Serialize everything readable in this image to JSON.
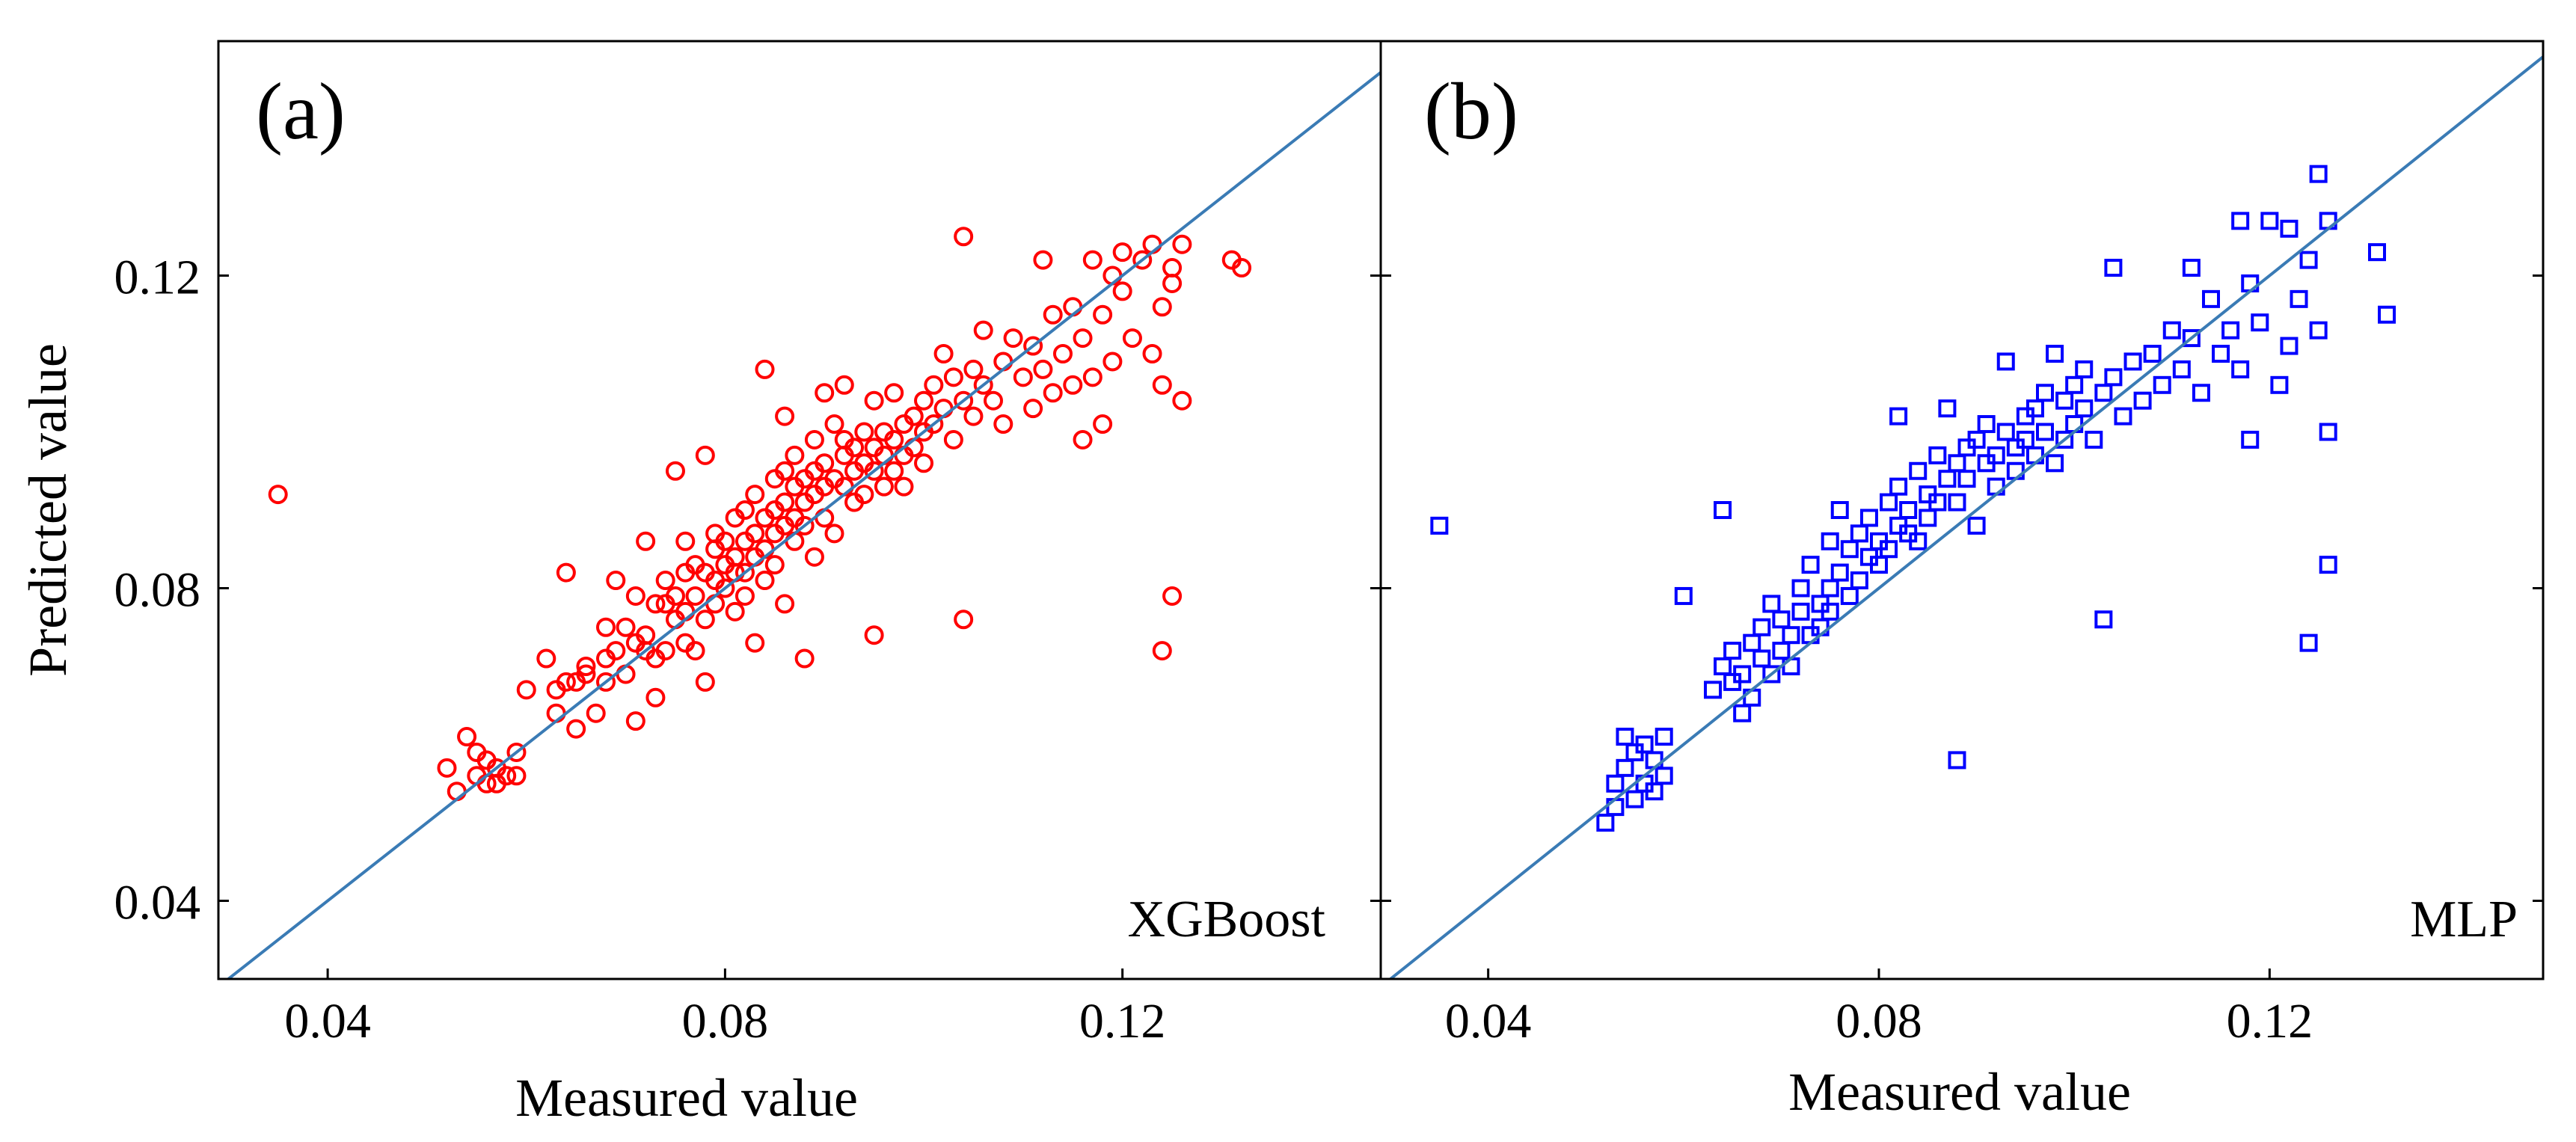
{
  "figure": {
    "ylabel": "Predicted value",
    "colors": {
      "xgboost_marker": "#ff0000",
      "mlp_marker": "#0000ff",
      "identity_line": "#3a7bb5",
      "axes": "#000000"
    }
  },
  "chart_data": [
    {
      "type": "scatter",
      "panel_label": "(a)",
      "model": "XGBoost",
      "marker": "circle",
      "xlabel": "Measured value",
      "ylabel": "Predicted value",
      "xlim": [
        0.029,
        0.146
      ],
      "ylim": [
        0.03,
        0.15
      ],
      "xticks": [
        0.04,
        0.08,
        0.12
      ],
      "xtick_labels": [
        "0.04",
        "0.08",
        "0.12"
      ],
      "yticks": [
        0.04,
        0.08,
        0.12
      ],
      "ytick_labels": [
        "0.04",
        "0.08",
        "0.12"
      ],
      "identity_line": true,
      "points": [
        [
          0.035,
          0.092
        ],
        [
          0.052,
          0.057
        ],
        [
          0.053,
          0.054
        ],
        [
          0.054,
          0.061
        ],
        [
          0.055,
          0.056
        ],
        [
          0.055,
          0.059
        ],
        [
          0.056,
          0.058
        ],
        [
          0.056,
          0.055
        ],
        [
          0.057,
          0.057
        ],
        [
          0.057,
          0.055
        ],
        [
          0.058,
          0.056
        ],
        [
          0.059,
          0.059
        ],
        [
          0.059,
          0.056
        ],
        [
          0.06,
          0.067
        ],
        [
          0.062,
          0.071
        ],
        [
          0.063,
          0.064
        ],
        [
          0.063,
          0.067
        ],
        [
          0.064,
          0.082
        ],
        [
          0.064,
          0.068
        ],
        [
          0.065,
          0.068
        ],
        [
          0.065,
          0.062
        ],
        [
          0.066,
          0.069
        ],
        [
          0.066,
          0.07
        ],
        [
          0.067,
          0.064
        ],
        [
          0.068,
          0.071
        ],
        [
          0.068,
          0.075
        ],
        [
          0.068,
          0.068
        ],
        [
          0.069,
          0.081
        ],
        [
          0.069,
          0.072
        ],
        [
          0.07,
          0.075
        ],
        [
          0.07,
          0.069
        ],
        [
          0.071,
          0.073
        ],
        [
          0.071,
          0.063
        ],
        [
          0.071,
          0.079
        ],
        [
          0.072,
          0.072
        ],
        [
          0.072,
          0.086
        ],
        [
          0.072,
          0.074
        ],
        [
          0.073,
          0.066
        ],
        [
          0.073,
          0.078
        ],
        [
          0.073,
          0.071
        ],
        [
          0.074,
          0.078
        ],
        [
          0.074,
          0.072
        ],
        [
          0.074,
          0.081
        ],
        [
          0.075,
          0.076
        ],
        [
          0.075,
          0.079
        ],
        [
          0.075,
          0.095
        ],
        [
          0.076,
          0.086
        ],
        [
          0.076,
          0.073
        ],
        [
          0.076,
          0.082
        ],
        [
          0.076,
          0.077
        ],
        [
          0.077,
          0.083
        ],
        [
          0.077,
          0.079
        ],
        [
          0.077,
          0.072
        ],
        [
          0.078,
          0.097
        ],
        [
          0.078,
          0.082
        ],
        [
          0.078,
          0.076
        ],
        [
          0.078,
          0.068
        ],
        [
          0.079,
          0.085
        ],
        [
          0.079,
          0.081
        ],
        [
          0.079,
          0.078
        ],
        [
          0.079,
          0.087
        ],
        [
          0.08,
          0.083
        ],
        [
          0.08,
          0.08
        ],
        [
          0.08,
          0.086
        ],
        [
          0.081,
          0.082
        ],
        [
          0.081,
          0.077
        ],
        [
          0.081,
          0.089
        ],
        [
          0.081,
          0.084
        ],
        [
          0.082,
          0.086
        ],
        [
          0.082,
          0.082
        ],
        [
          0.082,
          0.09
        ],
        [
          0.082,
          0.079
        ],
        [
          0.083,
          0.087
        ],
        [
          0.083,
          0.084
        ],
        [
          0.083,
          0.092
        ],
        [
          0.083,
          0.073
        ],
        [
          0.084,
          0.089
        ],
        [
          0.084,
          0.108
        ],
        [
          0.084,
          0.085
        ],
        [
          0.084,
          0.081
        ],
        [
          0.085,
          0.09
        ],
        [
          0.085,
          0.087
        ],
        [
          0.085,
          0.094
        ],
        [
          0.085,
          0.083
        ],
        [
          0.086,
          0.091
        ],
        [
          0.086,
          0.088
        ],
        [
          0.086,
          0.095
        ],
        [
          0.086,
          0.102
        ],
        [
          0.086,
          0.078
        ],
        [
          0.087,
          0.093
        ],
        [
          0.087,
          0.089
        ],
        [
          0.087,
          0.086
        ],
        [
          0.087,
          0.097
        ],
        [
          0.088,
          0.091
        ],
        [
          0.088,
          0.094
        ],
        [
          0.088,
          0.088
        ],
        [
          0.088,
          0.071
        ],
        [
          0.089,
          0.095
        ],
        [
          0.089,
          0.092
        ],
        [
          0.089,
          0.099
        ],
        [
          0.089,
          0.084
        ],
        [
          0.09,
          0.093
        ],
        [
          0.09,
          0.096
        ],
        [
          0.09,
          0.105
        ],
        [
          0.09,
          0.089
        ],
        [
          0.091,
          0.094
        ],
        [
          0.091,
          0.101
        ],
        [
          0.091,
          0.087
        ],
        [
          0.092,
          0.097
        ],
        [
          0.092,
          0.093
        ],
        [
          0.092,
          0.099
        ],
        [
          0.092,
          0.106
        ],
        [
          0.093,
          0.095
        ],
        [
          0.093,
          0.091
        ],
        [
          0.093,
          0.098
        ],
        [
          0.094,
          0.1
        ],
        [
          0.094,
          0.096
        ],
        [
          0.094,
          0.092
        ],
        [
          0.095,
          0.098
        ],
        [
          0.095,
          0.104
        ],
        [
          0.095,
          0.074
        ],
        [
          0.095,
          0.095
        ],
        [
          0.096,
          0.1
        ],
        [
          0.096,
          0.097
        ],
        [
          0.096,
          0.093
        ],
        [
          0.097,
          0.099
        ],
        [
          0.097,
          0.105
        ],
        [
          0.097,
          0.095
        ],
        [
          0.098,
          0.101
        ],
        [
          0.098,
          0.097
        ],
        [
          0.098,
          0.093
        ],
        [
          0.099,
          0.102
        ],
        [
          0.099,
          0.098
        ],
        [
          0.1,
          0.104
        ],
        [
          0.1,
          0.1
        ],
        [
          0.1,
          0.096
        ],
        [
          0.101,
          0.106
        ],
        [
          0.101,
          0.101
        ],
        [
          0.102,
          0.11
        ],
        [
          0.102,
          0.103
        ],
        [
          0.103,
          0.099
        ],
        [
          0.103,
          0.107
        ],
        [
          0.104,
          0.076
        ],
        [
          0.104,
          0.125
        ],
        [
          0.104,
          0.104
        ],
        [
          0.105,
          0.108
        ],
        [
          0.105,
          0.102
        ],
        [
          0.106,
          0.113
        ],
        [
          0.106,
          0.106
        ],
        [
          0.107,
          0.104
        ],
        [
          0.108,
          0.109
        ],
        [
          0.108,
          0.101
        ],
        [
          0.109,
          0.112
        ],
        [
          0.11,
          0.107
        ],
        [
          0.111,
          0.103
        ],
        [
          0.111,
          0.111
        ],
        [
          0.112,
          0.108
        ],
        [
          0.112,
          0.122
        ],
        [
          0.113,
          0.105
        ],
        [
          0.113,
          0.115
        ],
        [
          0.114,
          0.11
        ],
        [
          0.115,
          0.106
        ],
        [
          0.115,
          0.116
        ],
        [
          0.116,
          0.099
        ],
        [
          0.116,
          0.112
        ],
        [
          0.117,
          0.122
        ],
        [
          0.117,
          0.107
        ],
        [
          0.118,
          0.115
        ],
        [
          0.118,
          0.101
        ],
        [
          0.119,
          0.12
        ],
        [
          0.119,
          0.109
        ],
        [
          0.12,
          0.118
        ],
        [
          0.12,
          0.123
        ],
        [
          0.121,
          0.112
        ],
        [
          0.122,
          0.122
        ],
        [
          0.123,
          0.11
        ],
        [
          0.123,
          0.124
        ],
        [
          0.124,
          0.116
        ],
        [
          0.124,
          0.072
        ],
        [
          0.124,
          0.106
        ],
        [
          0.125,
          0.119
        ],
        [
          0.125,
          0.079
        ],
        [
          0.125,
          0.121
        ],
        [
          0.126,
          0.124
        ],
        [
          0.126,
          0.104
        ],
        [
          0.131,
          0.122
        ],
        [
          0.132,
          0.121
        ]
      ]
    },
    {
      "type": "scatter",
      "panel_label": "(b)",
      "model": "MLP",
      "marker": "square",
      "xlabel": "Measured value",
      "ylabel": "",
      "xlim": [
        0.029,
        0.148
      ],
      "ylim": [
        0.03,
        0.15
      ],
      "xticks": [
        0.04,
        0.08,
        0.12
      ],
      "xtick_labels": [
        "0.04",
        "0.08",
        "0.12"
      ],
      "yticks": [
        0.04,
        0.08,
        0.12
      ],
      "ytick_labels": [],
      "identity_line": true,
      "points": [
        [
          0.035,
          0.088
        ],
        [
          0.052,
          0.05
        ],
        [
          0.053,
          0.052
        ],
        [
          0.053,
          0.055
        ],
        [
          0.054,
          0.057
        ],
        [
          0.054,
          0.061
        ],
        [
          0.055,
          0.053
        ],
        [
          0.055,
          0.059
        ],
        [
          0.056,
          0.055
        ],
        [
          0.056,
          0.06
        ],
        [
          0.057,
          0.054
        ],
        [
          0.057,
          0.058
        ],
        [
          0.058,
          0.056
        ],
        [
          0.058,
          0.061
        ],
        [
          0.06,
          0.079
        ],
        [
          0.063,
          0.067
        ],
        [
          0.064,
          0.09
        ],
        [
          0.064,
          0.07
        ],
        [
          0.065,
          0.068
        ],
        [
          0.065,
          0.072
        ],
        [
          0.066,
          0.064
        ],
        [
          0.066,
          0.069
        ],
        [
          0.067,
          0.073
        ],
        [
          0.067,
          0.066
        ],
        [
          0.068,
          0.071
        ],
        [
          0.068,
          0.075
        ],
        [
          0.069,
          0.069
        ],
        [
          0.069,
          0.078
        ],
        [
          0.07,
          0.072
        ],
        [
          0.07,
          0.076
        ],
        [
          0.071,
          0.07
        ],
        [
          0.071,
          0.074
        ],
        [
          0.072,
          0.077
        ],
        [
          0.072,
          0.08
        ],
        [
          0.073,
          0.074
        ],
        [
          0.073,
          0.083
        ],
        [
          0.074,
          0.078
        ],
        [
          0.074,
          0.075
        ],
        [
          0.075,
          0.086
        ],
        [
          0.075,
          0.08
        ],
        [
          0.075,
          0.077
        ],
        [
          0.076,
          0.09
        ],
        [
          0.076,
          0.082
        ],
        [
          0.077,
          0.079
        ],
        [
          0.077,
          0.085
        ],
        [
          0.078,
          0.087
        ],
        [
          0.078,
          0.081
        ],
        [
          0.079,
          0.084
        ],
        [
          0.079,
          0.089
        ],
        [
          0.08,
          0.083
        ],
        [
          0.08,
          0.086
        ],
        [
          0.081,
          0.091
        ],
        [
          0.081,
          0.085
        ],
        [
          0.082,
          0.088
        ],
        [
          0.082,
          0.093
        ],
        [
          0.082,
          0.102
        ],
        [
          0.083,
          0.087
        ],
        [
          0.083,
          0.09
        ],
        [
          0.084,
          0.095
        ],
        [
          0.084,
          0.086
        ],
        [
          0.085,
          0.092
        ],
        [
          0.085,
          0.089
        ],
        [
          0.086,
          0.097
        ],
        [
          0.086,
          0.091
        ],
        [
          0.087,
          0.094
        ],
        [
          0.087,
          0.103
        ],
        [
          0.088,
          0.096
        ],
        [
          0.088,
          0.058
        ],
        [
          0.088,
          0.091
        ],
        [
          0.089,
          0.098
        ],
        [
          0.089,
          0.094
        ],
        [
          0.09,
          0.099
        ],
        [
          0.09,
          0.088
        ],
        [
          0.091,
          0.096
        ],
        [
          0.091,
          0.101
        ],
        [
          0.092,
          0.097
        ],
        [
          0.092,
          0.093
        ],
        [
          0.093,
          0.1
        ],
        [
          0.093,
          0.109
        ],
        [
          0.094,
          0.098
        ],
        [
          0.094,
          0.095
        ],
        [
          0.095,
          0.102
        ],
        [
          0.095,
          0.099
        ],
        [
          0.096,
          0.103
        ],
        [
          0.096,
          0.097
        ],
        [
          0.097,
          0.105
        ],
        [
          0.097,
          0.1
        ],
        [
          0.098,
          0.11
        ],
        [
          0.098,
          0.096
        ],
        [
          0.099,
          0.104
        ],
        [
          0.099,
          0.099
        ],
        [
          0.1,
          0.106
        ],
        [
          0.1,
          0.101
        ],
        [
          0.101,
          0.108
        ],
        [
          0.101,
          0.103
        ],
        [
          0.102,
          0.099
        ],
        [
          0.103,
          0.076
        ],
        [
          0.103,
          0.105
        ],
        [
          0.104,
          0.121
        ],
        [
          0.104,
          0.107
        ],
        [
          0.105,
          0.102
        ],
        [
          0.106,
          0.109
        ],
        [
          0.107,
          0.104
        ],
        [
          0.108,
          0.11
        ],
        [
          0.109,
          0.106
        ],
        [
          0.11,
          0.113
        ],
        [
          0.111,
          0.108
        ],
        [
          0.112,
          0.121
        ],
        [
          0.112,
          0.112
        ],
        [
          0.113,
          0.105
        ],
        [
          0.114,
          0.117
        ],
        [
          0.115,
          0.11
        ],
        [
          0.116,
          0.113
        ],
        [
          0.117,
          0.127
        ],
        [
          0.117,
          0.108
        ],
        [
          0.118,
          0.099
        ],
        [
          0.118,
          0.119
        ],
        [
          0.119,
          0.114
        ],
        [
          0.12,
          0.127
        ],
        [
          0.121,
          0.106
        ],
        [
          0.122,
          0.126
        ],
        [
          0.122,
          0.111
        ],
        [
          0.123,
          0.117
        ],
        [
          0.124,
          0.122
        ],
        [
          0.124,
          0.073
        ],
        [
          0.125,
          0.113
        ],
        [
          0.125,
          0.133
        ],
        [
          0.126,
          0.083
        ],
        [
          0.126,
          0.127
        ],
        [
          0.126,
          0.1
        ],
        [
          0.131,
          0.123
        ],
        [
          0.132,
          0.115
        ]
      ]
    }
  ]
}
